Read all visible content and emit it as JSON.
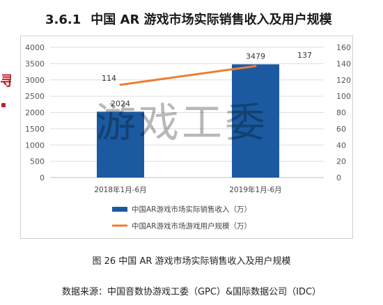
{
  "section": {
    "number": "3.6.1",
    "title": "中国 AR 游戏市场实际销售收入及用户规模"
  },
  "side_mark": "寻",
  "chart_data": {
    "type": "bar",
    "categories": [
      "2018年1月-6月",
      "2019年1月-6月"
    ],
    "series": [
      {
        "name": "中国AR游戏市场实际销售收入（万）",
        "type": "bar",
        "axis": "left",
        "values": [
          2024,
          3479
        ],
        "labels": [
          "2024",
          "3479"
        ],
        "color": "#1b5aa0"
      },
      {
        "name": "中国AR游戏市场游戏用户规模（万）",
        "type": "line",
        "axis": "right",
        "values": [
          114,
          137
        ],
        "labels": [
          "114",
          "137"
        ],
        "color": "#ed7d31"
      }
    ],
    "y_left": {
      "min": 0,
      "max": 4000,
      "ticks": [
        "0",
        "500",
        "1000",
        "1500",
        "2000",
        "2500",
        "3000",
        "3500",
        "4000"
      ]
    },
    "y_right": {
      "min": 0,
      "max": 160,
      "ticks": [
        "0",
        "20",
        "40",
        "60",
        "80",
        "100",
        "120",
        "140",
        "160"
      ]
    },
    "grid": true,
    "legend_position": "bottom"
  },
  "watermark": "游戏工委",
  "caption": "图 26  中国 AR 游戏市场实际销售收入及用户规模",
  "source": "数据来源：中国音数协游戏工委（GPC）&国际数据公司（IDC）"
}
